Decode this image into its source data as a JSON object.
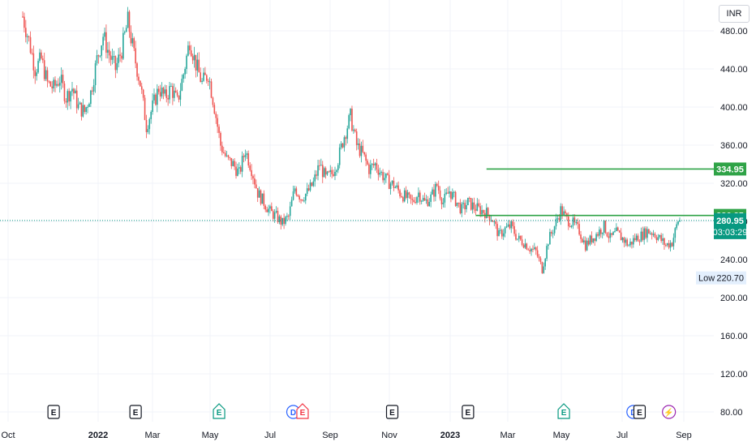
{
  "currency": "INR",
  "chart_data": {
    "type": "candlestick",
    "yaxis": {
      "ticks": [
        80,
        120,
        160,
        200,
        240,
        280,
        320,
        360,
        400,
        440,
        480
      ],
      "tick_labels": [
        "80.00",
        "120.00",
        "160.00",
        "200.00",
        "240.00",
        "280.00",
        "320.00",
        "360.00",
        "400.00",
        "440.00",
        "480.00"
      ],
      "range": [
        75,
        505
      ]
    },
    "xaxis": {
      "labels": [
        {
          "text": "Oct",
          "bold": false
        },
        {
          "text": "2022",
          "bold": true
        },
        {
          "text": "Mar",
          "bold": false
        },
        {
          "text": "May",
          "bold": false
        },
        {
          "text": "Jul",
          "bold": false
        },
        {
          "text": "Sep",
          "bold": false
        },
        {
          "text": "Nov",
          "bold": false
        },
        {
          "text": "2023",
          "bold": true
        },
        {
          "text": "Mar",
          "bold": false
        },
        {
          "text": "May",
          "bold": false
        },
        {
          "text": "Jul",
          "bold": false
        },
        {
          "text": "Sep",
          "bold": false
        }
      ]
    },
    "price_path": [
      [
        0,
        495
      ],
      [
        4,
        470
      ],
      [
        8,
        440
      ],
      [
        12,
        450
      ],
      [
        16,
        425
      ],
      [
        20,
        420
      ],
      [
        24,
        430
      ],
      [
        28,
        410
      ],
      [
        32,
        420
      ],
      [
        36,
        400
      ],
      [
        40,
        395
      ],
      [
        44,
        415
      ],
      [
        48,
        450
      ],
      [
        52,
        475
      ],
      [
        56,
        455
      ],
      [
        60,
        440
      ],
      [
        64,
        460
      ],
      [
        68,
        490
      ],
      [
        72,
        455
      ],
      [
        76,
        425
      ],
      [
        80,
        380
      ],
      [
        84,
        400
      ],
      [
        88,
        420
      ],
      [
        92,
        410
      ],
      [
        96,
        420
      ],
      [
        100,
        405
      ],
      [
        104,
        435
      ],
      [
        108,
        470
      ],
      [
        112,
        445
      ],
      [
        116,
        425
      ],
      [
        120,
        435
      ],
      [
        124,
        400
      ],
      [
        128,
        360
      ],
      [
        132,
        345
      ],
      [
        136,
        340
      ],
      [
        140,
        330
      ],
      [
        144,
        355
      ],
      [
        148,
        335
      ],
      [
        152,
        310
      ],
      [
        156,
        300
      ],
      [
        160,
        290
      ],
      [
        164,
        285
      ],
      [
        168,
        278
      ],
      [
        172,
        285
      ],
      [
        176,
        315
      ],
      [
        180,
        305
      ],
      [
        184,
        310
      ],
      [
        188,
        320
      ],
      [
        192,
        340
      ],
      [
        196,
        325
      ],
      [
        200,
        330
      ],
      [
        204,
        345
      ],
      [
        208,
        370
      ],
      [
        212,
        390
      ],
      [
        216,
        360
      ],
      [
        220,
        350
      ],
      [
        224,
        335
      ],
      [
        228,
        340
      ],
      [
        232,
        330
      ],
      [
        236,
        322
      ],
      [
        240,
        318
      ],
      [
        244,
        310
      ],
      [
        248,
        305
      ],
      [
        252,
        300
      ],
      [
        256,
        310
      ],
      [
        260,
        300
      ],
      [
        264,
        305
      ],
      [
        268,
        318
      ],
      [
        272,
        300
      ],
      [
        276,
        312
      ],
      [
        280,
        302
      ],
      [
        284,
        292
      ],
      [
        288,
        300
      ],
      [
        292,
        295
      ],
      [
        296,
        292
      ],
      [
        300,
        289
      ],
      [
        304,
        282
      ],
      [
        308,
        265
      ],
      [
        312,
        272
      ],
      [
        316,
        275
      ],
      [
        320,
        262
      ],
      [
        324,
        258
      ],
      [
        328,
        252
      ],
      [
        332,
        248
      ],
      [
        336,
        230
      ],
      [
        340,
        260
      ],
      [
        344,
        275
      ],
      [
        348,
        292
      ],
      [
        352,
        282
      ],
      [
        356,
        278
      ],
      [
        360,
        270
      ],
      [
        364,
        255
      ],
      [
        368,
        262
      ],
      [
        372,
        268
      ],
      [
        376,
        275
      ],
      [
        380,
        262
      ],
      [
        384,
        268
      ],
      [
        388,
        262
      ],
      [
        392,
        255
      ],
      [
        396,
        262
      ],
      [
        400,
        265
      ],
      [
        404,
        270
      ],
      [
        408,
        268
      ],
      [
        412,
        262
      ],
      [
        416,
        255
      ],
      [
        420,
        258
      ],
      [
        424,
        280.95
      ]
    ],
    "horizontal_lines": [
      {
        "value": 334.95,
        "label": "334.95",
        "color": "#2fa347",
        "from_index": 300
      },
      {
        "value": 286.25,
        "label": "286.25",
        "color": "#2fa347",
        "from_index": 293
      }
    ],
    "last_price": {
      "value": 280.95,
      "label": "280.95",
      "countdown": "03:03:29",
      "color": "#089981"
    },
    "low": {
      "label": "Low",
      "value": "220.70"
    },
    "events": [
      {
        "letter": "E",
        "index": 20,
        "color": "#131722",
        "shape": "square"
      },
      {
        "letter": "E",
        "index": 73,
        "color": "#131722",
        "shape": "square"
      },
      {
        "letter": "E",
        "index": 127,
        "color": "#089981",
        "shape": "house"
      },
      {
        "letter": "D",
        "index": 175,
        "color": "#2962ff",
        "shape": "circle"
      },
      {
        "letter": "E",
        "index": 181,
        "color": "#f23645",
        "shape": "house"
      },
      {
        "letter": "E",
        "index": 239,
        "color": "#131722",
        "shape": "square"
      },
      {
        "letter": "E",
        "index": 288,
        "color": "#131722",
        "shape": "square"
      },
      {
        "letter": "E",
        "index": 350,
        "color": "#089981",
        "shape": "house"
      },
      {
        "letter": "D",
        "index": 395,
        "color": "#2962ff",
        "shape": "circle"
      },
      {
        "letter": "E",
        "index": 399,
        "color": "#131722",
        "shape": "square"
      },
      {
        "letter": "⚡",
        "index": 418,
        "color": "#9c27b0",
        "shape": "circle"
      }
    ],
    "colors": {
      "up": "#26a69a",
      "down": "#ef5350",
      "grid": "#f0f3fa"
    }
  }
}
